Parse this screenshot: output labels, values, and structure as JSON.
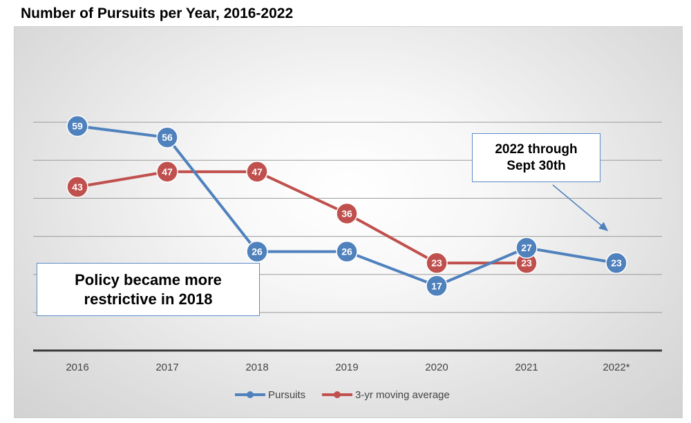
{
  "chart_data": {
    "type": "line",
    "title": "Number of Pursuits per Year, 2016-2022",
    "categories": [
      "2016",
      "2017",
      "2018",
      "2019",
      "2020",
      "2021",
      "2022*"
    ],
    "ylim": [
      0,
      70
    ],
    "grid": true,
    "xlabel": "",
    "ylabel": "",
    "series": [
      {
        "name": "Pursuits",
        "color": "#4f81bd",
        "values": [
          59,
          56,
          26,
          26,
          17,
          27,
          23
        ]
      },
      {
        "name": "3-yr moving average",
        "color": "#c0504d",
        "values": [
          43,
          47,
          47,
          36,
          23,
          23,
          null
        ]
      }
    ],
    "annotations": [
      {
        "lines": [
          "Policy became more",
          "restrictive in 2018"
        ]
      },
      {
        "lines": [
          "2022 through",
          "Sept 30th"
        ],
        "points_to": "2022*"
      }
    ],
    "legend_position": "bottom-center"
  }
}
